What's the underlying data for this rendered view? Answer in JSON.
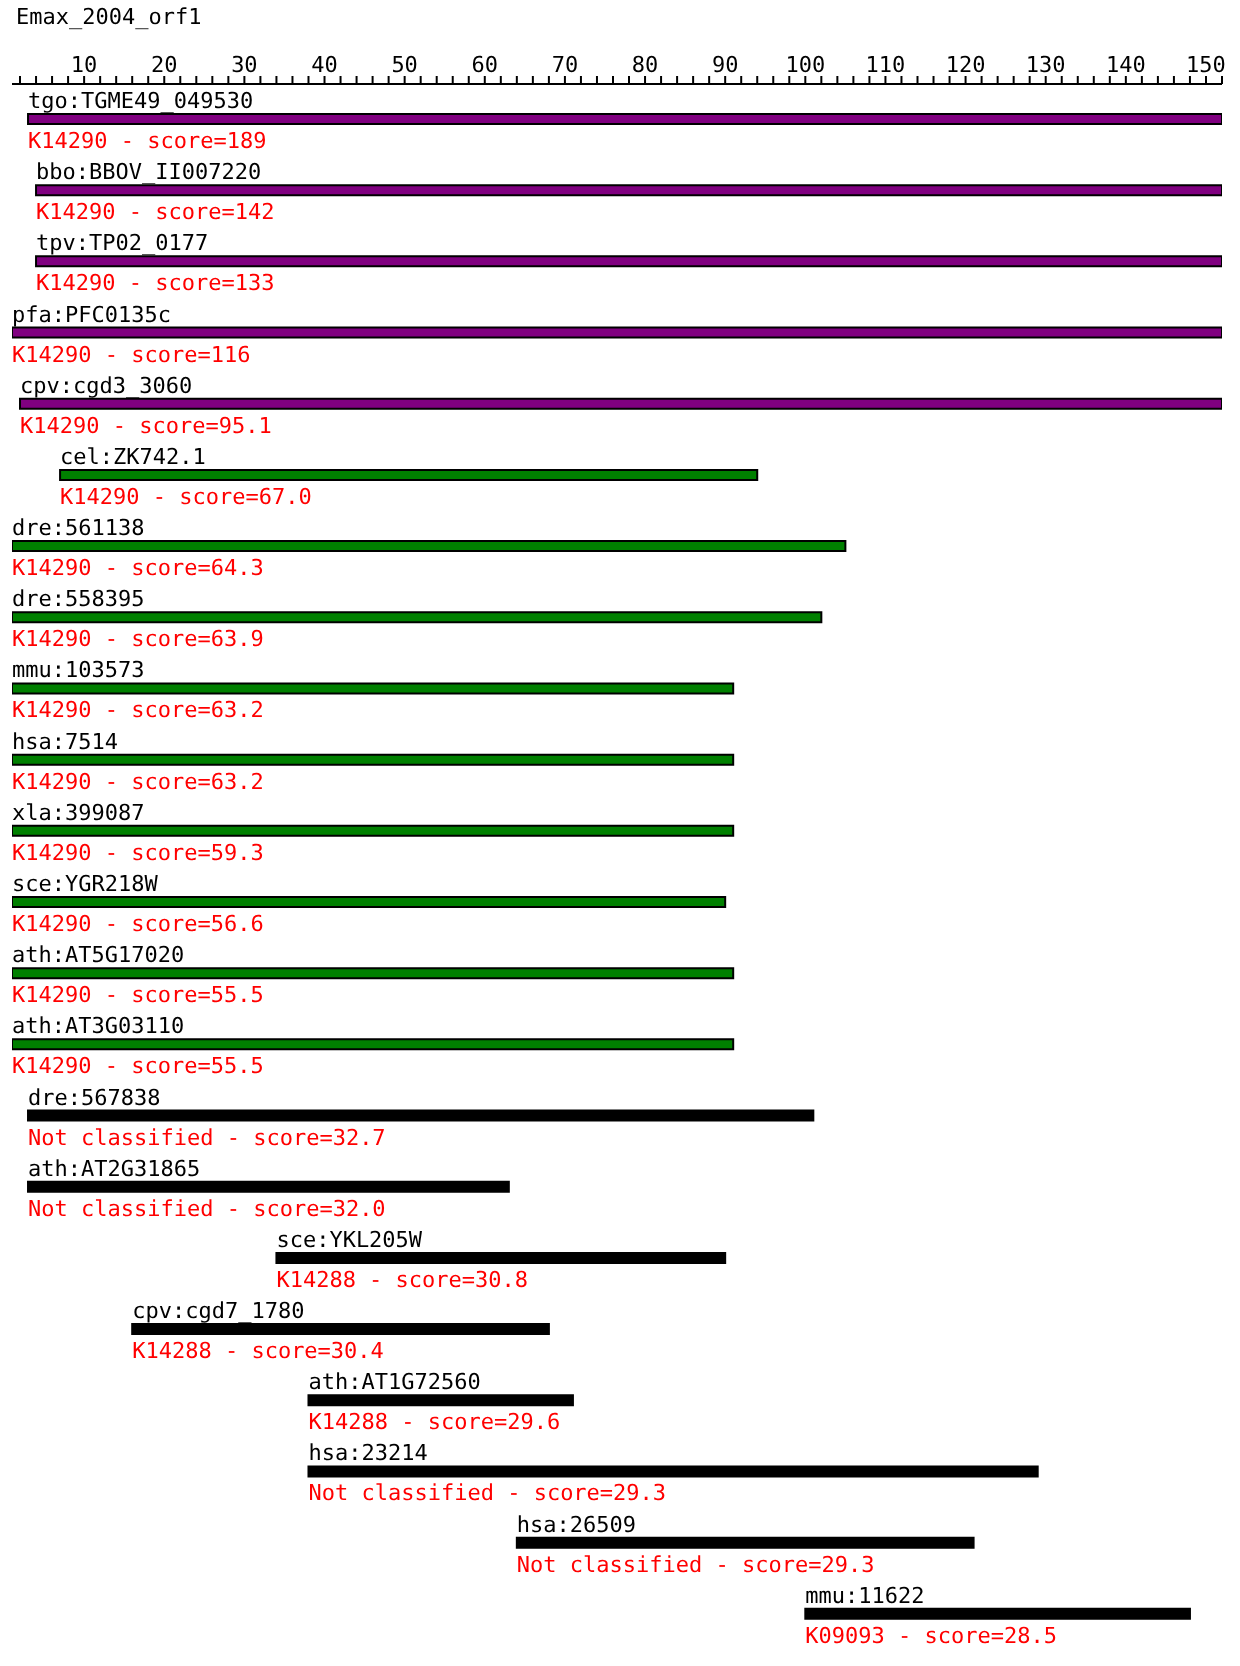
{
  "chart_data": {
    "type": "bar",
    "orientation": "horizontal",
    "title": "Emax_2004_orf1",
    "categories": [
      "tgo:TGME49_049530",
      "bbo:BBOV_II007220",
      "tpv:TP02_0177",
      "pfa:PFC0135c",
      "cpv:cgd3_3060",
      "cel:ZK742.1",
      "dre:561138",
      "dre:558395",
      "mmu:103573",
      "hsa:7514",
      "xla:399087",
      "sce:YGR218W",
      "ath:AT5G17020",
      "ath:AT3G03110",
      "dre:567838",
      "ath:AT2G31865",
      "sce:YKL205W",
      "cpv:cgd7_1780",
      "ath:AT1G72560",
      "hsa:23214",
      "hsa:26509",
      "mmu:11622"
    ],
    "base": [
      3,
      4,
      4,
      1,
      2,
      7,
      1,
      1,
      1,
      1,
      1,
      1,
      1,
      1,
      3,
      3,
      34,
      16,
      38,
      38,
      64,
      100
    ],
    "values": [
      149,
      148,
      148,
      151,
      150,
      87,
      104,
      101,
      90,
      90,
      90,
      89,
      90,
      90,
      98,
      60,
      56,
      52,
      33,
      91,
      57,
      48
    ],
    "colors": [
      "#800080",
      "#800080",
      "#800080",
      "#800080",
      "#800080",
      "#008000",
      "#008000",
      "#008000",
      "#008000",
      "#008000",
      "#008000",
      "#008000",
      "#008000",
      "#008000",
      "#000000",
      "#000000",
      "#000000",
      "#000000",
      "#000000",
      "#000000",
      "#000000",
      "#000000"
    ],
    "annotations": [
      {
        "text": "K14290 - score=189",
        "y": "tgo:TGME49_049530"
      },
      {
        "text": "K14290 - score=142",
        "y": "bbo:BBOV_II007220"
      },
      {
        "text": "K14290 - score=133",
        "y": "tpv:TP02_0177"
      },
      {
        "text": "K14290 - score=116",
        "y": "pfa:PFC0135c"
      },
      {
        "text": "K14290 - score=95.1",
        "y": "cpv:cgd3_3060"
      },
      {
        "text": "K14290 - score=67.0",
        "y": "cel:ZK742.1"
      },
      {
        "text": "K14290 - score=64.3",
        "y": "dre:561138"
      },
      {
        "text": "K14290 - score=63.9",
        "y": "dre:558395"
      },
      {
        "text": "K14290 - score=63.2",
        "y": "mmu:103573"
      },
      {
        "text": "K14290 - score=63.2",
        "y": "hsa:7514"
      },
      {
        "text": "K14290 - score=59.3",
        "y": "xla:399087"
      },
      {
        "text": "K14290 - score=56.6",
        "y": "sce:YGR218W"
      },
      {
        "text": "K14290 - score=55.5",
        "y": "ath:AT5G17020"
      },
      {
        "text": "K14290 - score=55.5",
        "y": "ath:AT3G03110"
      },
      {
        "text": "Not classified - score=32.7",
        "y": "dre:567838"
      },
      {
        "text": "Not classified - score=32.0",
        "y": "ath:AT2G31865"
      },
      {
        "text": "K14288 - score=30.8",
        "y": "sce:YKL205W"
      },
      {
        "text": "K14288 - score=30.4",
        "y": "cpv:cgd7_1780"
      },
      {
        "text": "K14288 - score=29.6",
        "y": "ath:AT1G72560"
      },
      {
        "text": "Not classified - score=29.3",
        "y": "hsa:23214"
      },
      {
        "text": "Not classified - score=29.3",
        "y": "hsa:26509"
      },
      {
        "text": "K09093 - score=28.5",
        "y": "mmu:11622"
      }
    ],
    "xlim": [
      1,
      152
    ],
    "xticks": [
      {
        "value": 2,
        "label": null
      },
      {
        "value": 4,
        "label": null
      },
      {
        "value": 6,
        "label": null
      },
      {
        "value": 8,
        "label": null
      },
      10,
      {
        "value": 12,
        "label": null
      },
      {
        "value": 14,
        "label": null
      },
      {
        "value": 16,
        "label": null
      },
      {
        "value": 18,
        "label": null
      },
      20,
      {
        "value": 22,
        "label": null
      },
      {
        "value": 24,
        "label": null
      },
      {
        "value": 26,
        "label": null
      },
      {
        "value": 28,
        "label": null
      },
      30,
      {
        "value": 32,
        "label": null
      },
      {
        "value": 34,
        "label": null
      },
      {
        "value": 36,
        "label": null
      },
      {
        "value": 38,
        "label": null
      },
      40,
      {
        "value": 42,
        "label": null
      },
      {
        "value": 44,
        "label": null
      },
      {
        "value": 46,
        "label": null
      },
      {
        "value": 48,
        "label": null
      },
      50,
      {
        "value": 52,
        "label": null
      },
      {
        "value": 54,
        "label": null
      },
      {
        "value": 56,
        "label": null
      },
      {
        "value": 58,
        "label": null
      },
      60,
      {
        "value": 62,
        "label": null
      },
      {
        "value": 64,
        "label": null
      },
      {
        "value": 66,
        "label": null
      },
      {
        "value": 68,
        "label": null
      },
      70,
      {
        "value": 72,
        "label": null
      },
      {
        "value": 74,
        "label": null
      },
      {
        "value": 76,
        "label": null
      },
      {
        "value": 78,
        "label": null
      },
      80,
      {
        "value": 82,
        "label": null
      },
      {
        "value": 84,
        "label": null
      },
      {
        "value": 86,
        "label": null
      },
      {
        "value": 88,
        "label": null
      },
      90,
      {
        "value": 92,
        "label": null
      },
      {
        "value": 94,
        "label": null
      },
      {
        "value": 96,
        "label": null
      },
      {
        "value": 98,
        "label": null
      },
      100,
      {
        "value": 102,
        "label": null
      },
      {
        "value": 104,
        "label": null
      },
      {
        "value": 106,
        "label": null
      },
      {
        "value": 108,
        "label": null
      },
      110,
      {
        "value": 112,
        "label": null
      },
      {
        "value": 114,
        "label": null
      },
      {
        "value": 116,
        "label": null
      },
      {
        "value": 118,
        "label": null
      },
      120,
      {
        "value": 122,
        "label": null
      },
      {
        "value": 124,
        "label": null
      },
      {
        "value": 126,
        "label": null
      },
      {
        "value": 128,
        "label": null
      },
      130,
      {
        "value": 132,
        "label": null
      },
      {
        "value": 134,
        "label": null
      },
      {
        "value": 136,
        "label": null
      },
      {
        "value": 138,
        "label": null
      },
      140,
      {
        "value": 142,
        "label": null
      },
      {
        "value": 144,
        "label": null
      },
      {
        "value": 146,
        "label": null
      },
      {
        "value": 148,
        "label": null
      },
      150,
      {
        "value": 152,
        "label": null
      }
    ],
    "legend": false,
    "grid": false
  }
}
